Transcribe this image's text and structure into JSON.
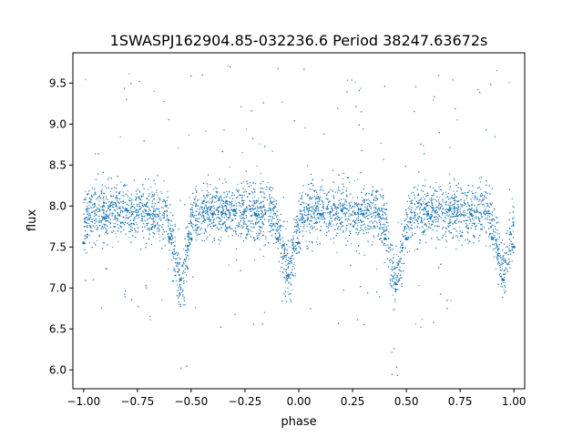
{
  "chart_data": {
    "type": "scatter",
    "title": "1SWASPJ162904.85-032236.6 Period 38247.63672s",
    "xlabel": "phase",
    "ylabel": "flux",
    "xlim": [
      -1.05,
      1.05
    ],
    "ylim": [
      5.77,
      9.87
    ],
    "xticks": [
      -1.0,
      -0.75,
      -0.5,
      -0.25,
      0.0,
      0.25,
      0.5,
      0.75,
      1.0
    ],
    "xtick_labels": [
      "−1.00",
      "−0.75",
      "−0.50",
      "−0.25",
      "0.00",
      "0.25",
      "0.50",
      "0.75",
      "1.00"
    ],
    "yticks": [
      6.0,
      6.5,
      7.0,
      7.5,
      8.0,
      8.5,
      9.0,
      9.5
    ],
    "ytick_labels": [
      "6.0",
      "6.5",
      "7.0",
      "7.5",
      "8.0",
      "8.5",
      "9.0",
      "9.5"
    ],
    "grid": false,
    "marker_color": "#1f77b4",
    "series": [
      {
        "x": [
          -1.0,
          -0.9,
          -0.8,
          -0.7,
          -0.6,
          -0.55,
          -0.5,
          -0.4,
          -0.3,
          -0.2,
          -0.1,
          -0.05,
          0.0,
          0.1,
          0.2,
          0.3,
          0.4,
          0.45,
          0.5,
          0.6,
          0.7,
          0.8,
          0.9,
          0.95,
          1.0
        ],
        "y": [
          7.55,
          7.85,
          7.95,
          7.9,
          7.6,
          7.1,
          7.6,
          7.9,
          7.95,
          7.9,
          7.6,
          7.15,
          7.55,
          7.9,
          7.95,
          7.9,
          7.6,
          7.05,
          7.6,
          7.9,
          7.95,
          7.9,
          7.6,
          7.1,
          7.5
        ]
      }
    ]
  }
}
